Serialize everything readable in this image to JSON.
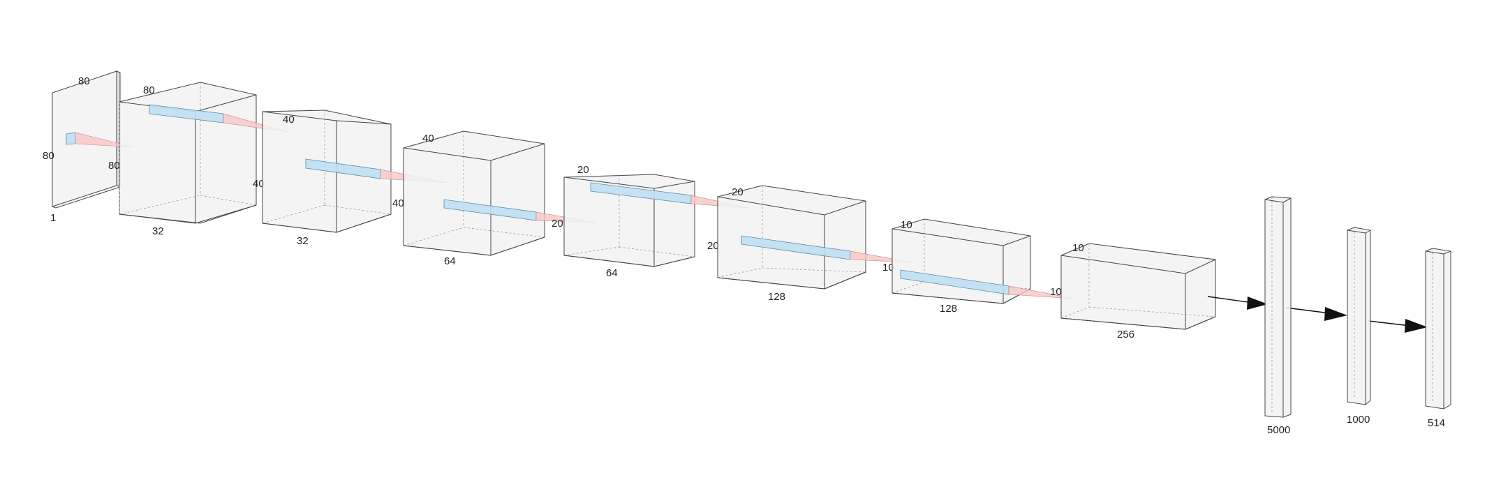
{
  "colors": {
    "volume_fill": "#f2f2f2",
    "volume_edge": "#444444",
    "kernel": "#bfe0f3",
    "cone": "#f7c6c6",
    "arrow": "#111111"
  },
  "input": {
    "channels": "1",
    "height": "80",
    "width": "80",
    "depth_label": "80",
    "side_label": "80"
  },
  "conv_layers": [
    {
      "channels": "32",
      "top_label": "80",
      "side_label": "40"
    },
    {
      "channels": "32",
      "top_label": "40",
      "side_label": "40"
    },
    {
      "channels": "64",
      "top_label": "40",
      "side_label": "20"
    },
    {
      "channels": "64",
      "top_label": "20",
      "side_label": "20"
    },
    {
      "channels": "128",
      "top_label": "20",
      "side_label": "10"
    },
    {
      "channels": "128",
      "top_label": "10",
      "side_label": "10"
    },
    {
      "channels": "256",
      "top_label": "10",
      "side_label": ""
    }
  ],
  "dense_layers": [
    {
      "units": "5000"
    },
    {
      "units": "1000"
    },
    {
      "units": "514"
    }
  ]
}
